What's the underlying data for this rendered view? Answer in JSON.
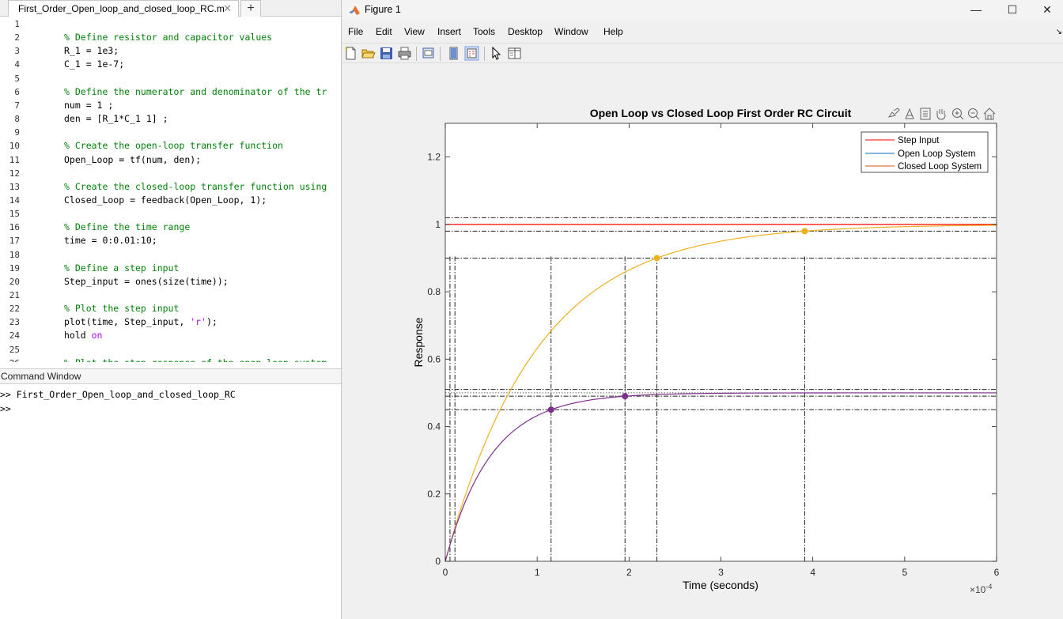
{
  "editor": {
    "tab_title": "First_Order_Open_loop_and_closed_loop_RC.m",
    "tab_close_glyph": "✕",
    "new_tab_glyph": "+",
    "lines": [
      {
        "no": "1",
        "kind": "code",
        "text": ""
      },
      {
        "no": "2",
        "kind": "comment",
        "text": "% Define resistor and capacitor values"
      },
      {
        "no": "3",
        "kind": "code",
        "text": "R_1 = 1e3;"
      },
      {
        "no": "4",
        "kind": "code",
        "text": "C_1 = 1e-7;"
      },
      {
        "no": "5",
        "kind": "code",
        "text": ""
      },
      {
        "no": "6",
        "kind": "comment",
        "text": "% Define the numerator and denominator of the tr"
      },
      {
        "no": "7",
        "kind": "code",
        "text": "num = 1 ;"
      },
      {
        "no": "8",
        "kind": "code",
        "text": "den = [R_1*C_1 1] ;"
      },
      {
        "no": "9",
        "kind": "code",
        "text": ""
      },
      {
        "no": "10",
        "kind": "comment",
        "text": "% Create the open-loop transfer function"
      },
      {
        "no": "11",
        "kind": "code",
        "text": "Open_Loop = tf(num, den);"
      },
      {
        "no": "12",
        "kind": "code",
        "text": ""
      },
      {
        "no": "13",
        "kind": "comment",
        "text": "% Create the closed-loop transfer function using"
      },
      {
        "no": "14",
        "kind": "code",
        "text": "Closed_Loop = feedback(Open_Loop, 1);"
      },
      {
        "no": "15",
        "kind": "code",
        "text": ""
      },
      {
        "no": "16",
        "kind": "comment",
        "text": "% Define the time range"
      },
      {
        "no": "17",
        "kind": "code",
        "text": "time = 0:0.01:10;"
      },
      {
        "no": "18",
        "kind": "code",
        "text": ""
      },
      {
        "no": "19",
        "kind": "comment",
        "text": "% Define a step input"
      },
      {
        "no": "20",
        "kind": "code",
        "text": "Step_input = ones(size(time));"
      },
      {
        "no": "21",
        "kind": "code",
        "text": ""
      },
      {
        "no": "22",
        "kind": "comment",
        "text": "% Plot the step input"
      },
      {
        "no": "23",
        "kind": "plot",
        "pre": "plot(time, Step_input, ",
        "str": "'r'",
        "post": ");"
      },
      {
        "no": "24",
        "kind": "hold",
        "pre": "hold ",
        "kw": "on"
      },
      {
        "no": "25",
        "kind": "code",
        "text": ""
      },
      {
        "no": "26",
        "kind": "comment",
        "text": "% Plot the step response of the open-loop system"
      }
    ]
  },
  "command_window": {
    "title": "Command Window",
    "lines": [
      ">> First_Order_Open_loop_and_closed_loop_RC",
      ">>"
    ]
  },
  "figure": {
    "title": "Figure 1",
    "window_controls": {
      "minimize": "—",
      "maximize": "☐",
      "close": "✕"
    },
    "menu": [
      "File",
      "Edit",
      "View",
      "Insert",
      "Tools",
      "Desktop",
      "Window",
      "Help"
    ],
    "menu_overflow": "↘",
    "toolbar": [
      "new-figure",
      "open-file",
      "save",
      "print",
      "print-preview",
      "link-plot",
      "insert-legend",
      "edit-plot",
      "property-inspector"
    ]
  },
  "chart_data": {
    "type": "line",
    "title": "Open Loop vs Closed Loop First Order RC Circuit",
    "xlabel": "Time (seconds)",
    "ylabel": "Response",
    "x_exponent_label": "×10",
    "x_exponent_power": "-4",
    "xlim": [
      0,
      6
    ],
    "ylim": [
      0,
      1.3
    ],
    "x_ticks": [
      0,
      1,
      2,
      3,
      4,
      5,
      6
    ],
    "x_tick_labels": [
      "0",
      "1",
      "2",
      "3",
      "4",
      "5",
      "6"
    ],
    "y_ticks": [
      0,
      0.2,
      0.4,
      0.6,
      0.8,
      1,
      1.2
    ],
    "y_tick_labels": [
      "0",
      "0.2",
      "0.4",
      "0.6",
      "0.8",
      "1",
      "1.2"
    ],
    "legend_position": "top-right",
    "legend": [
      "Step Input",
      "Open Loop System",
      "Closed Loop System"
    ],
    "series": [
      {
        "name": "Step Input",
        "color": "#ff0000",
        "kind": "step",
        "value": 1
      },
      {
        "name": "Open Loop System",
        "color": "#edb120",
        "kind": "first_order",
        "gain": 1,
        "tau": 1,
        "markers": [
          {
            "x": 2.303,
            "y": 0.9
          },
          {
            "x": 3.912,
            "y": 0.98
          }
        ]
      },
      {
        "name": "Closed Loop System",
        "color": "#7e2f8e",
        "kind": "first_order",
        "gain": 0.5,
        "tau": 0.5,
        "markers": [
          {
            "x": 1.151,
            "y": 0.45
          },
          {
            "x": 1.956,
            "y": 0.49
          }
        ]
      }
    ],
    "reference_lines": {
      "horizontal": [
        1.02,
        0.98,
        0.9,
        0.51,
        0.49,
        0.45
      ],
      "vertical": [
        0.051,
        0.105,
        1.151,
        1.956,
        2.303,
        3.912
      ]
    },
    "dotted_steady_state": 0.5,
    "colors": {
      "axes_bg": "#ffffff",
      "figure_bg": "#f0f0f0"
    }
  }
}
